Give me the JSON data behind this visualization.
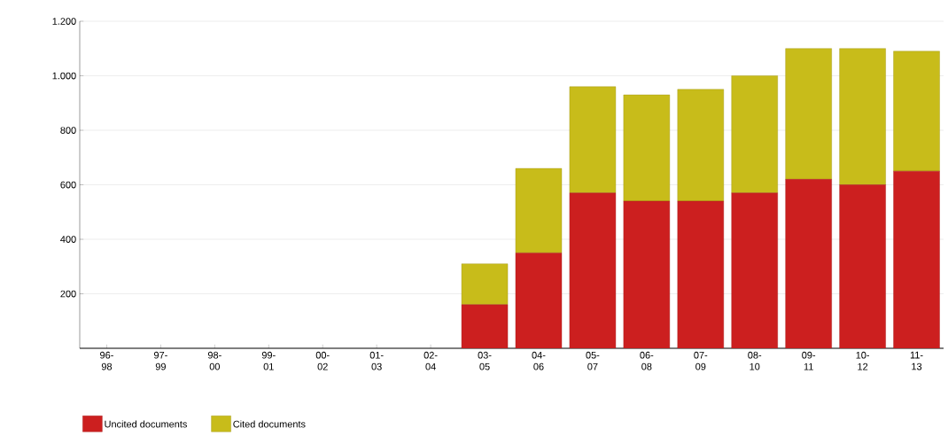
{
  "chart_data": {
    "type": "bar",
    "stacked": true,
    "categories": [
      "96-98",
      "97-99",
      "98-00",
      "99-01",
      "00-02",
      "01-03",
      "02-04",
      "03-05",
      "04-06",
      "05-07",
      "06-08",
      "07-09",
      "08-10",
      "09-11",
      "10-12",
      "11-13"
    ],
    "series": [
      {
        "name": "Uncited documents",
        "color": "#cc1f1f",
        "values": [
          0,
          0,
          0,
          0,
          0,
          0,
          0,
          160,
          350,
          570,
          540,
          540,
          570,
          620,
          600,
          650
        ]
      },
      {
        "name": "Cited documents",
        "color": "#c8bc1a",
        "values": [
          0,
          0,
          0,
          0,
          0,
          0,
          0,
          150,
          310,
          390,
          390,
          410,
          430,
          480,
          500,
          440
        ]
      }
    ],
    "ylim": [
      0,
      1200
    ],
    "yticks": [
      200,
      400,
      600,
      800,
      {
        "value": 1000,
        "label": "1.000"
      },
      {
        "value": 1200,
        "label": "1.200"
      }
    ],
    "grid": true,
    "legend": "bottom left"
  }
}
